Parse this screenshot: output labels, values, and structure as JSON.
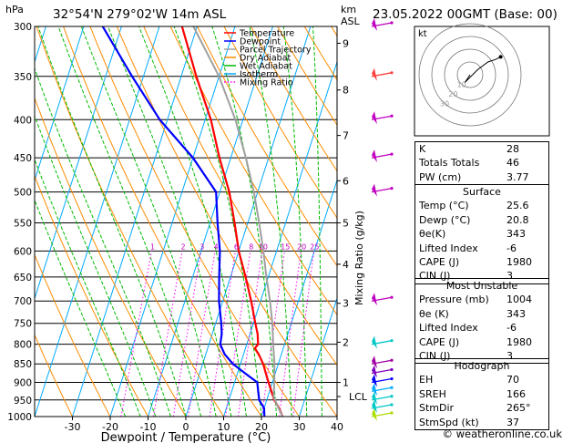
{
  "header": {
    "hpa_label": "hPa",
    "location": "32°54'N  279°02'W  14m  ASL",
    "km_label": "km",
    "asl_label": "ASL",
    "datetime": "23.05.2022  00GMT  (Base: 00)"
  },
  "legend": [
    {
      "label": "Temperature",
      "color": "#ff0000",
      "style": "solid"
    },
    {
      "label": "Dewpoint",
      "color": "#0000ff",
      "style": "solid"
    },
    {
      "label": "Parcel Trajectory",
      "color": "#a0a0a0",
      "style": "solid"
    },
    {
      "label": "Dry Adiabat",
      "color": "#ff8c00",
      "style": "solid"
    },
    {
      "label": "Wet Adiabat",
      "color": "#00bb00",
      "style": "solid"
    },
    {
      "label": "Isotherm",
      "color": "#00aaff",
      "style": "solid"
    },
    {
      "label": "Mixing Ratio",
      "color": "#ff00ff",
      "style": "dotted"
    }
  ],
  "chart_data": {
    "type": "line",
    "xlabel": "Dewpoint / Temperature (°C)",
    "ylabel_right": "Mixing Ratio (g/kg)",
    "xlim": [
      -40,
      40
    ],
    "ylim_hpa": [
      1000,
      300
    ],
    "x_ticks": [
      "-30",
      "-20",
      "-10",
      "0",
      "10",
      "20",
      "30",
      "40"
    ],
    "pressure_levels": [
      300,
      350,
      400,
      450,
      500,
      550,
      600,
      650,
      700,
      750,
      800,
      850,
      900,
      950,
      1000
    ],
    "pressure_labels": [
      "300",
      "350",
      "400",
      "450",
      "500",
      "550",
      "600",
      "650",
      "700",
      "750",
      "800",
      "850",
      "900",
      "950",
      "1000"
    ],
    "km_ticks": [
      {
        "label": "9",
        "p": 316
      },
      {
        "label": "8",
        "p": 365
      },
      {
        "label": "7",
        "p": 420
      },
      {
        "label": "6",
        "p": 483
      },
      {
        "label": "5",
        "p": 550
      },
      {
        "label": "4",
        "p": 625
      },
      {
        "label": "3",
        "p": 705
      },
      {
        "label": "2",
        "p": 795
      },
      {
        "label": "1",
        "p": 900
      }
    ],
    "lcl": {
      "label": "LCL",
      "p": 940
    },
    "mixing_ratio_labels": [
      "1",
      "2",
      "3",
      "4",
      "6",
      "8",
      "10",
      "15",
      "20",
      "25"
    ],
    "mixing_ratio_values": [
      1,
      2,
      3,
      4,
      6,
      8,
      10,
      15,
      20,
      25
    ],
    "mixing_ratio_label_p": 590,
    "series": [
      {
        "name": "Temperature",
        "color": "#ff0000",
        "points": [
          [
            1000,
            25.6
          ],
          [
            975,
            24
          ],
          [
            950,
            22
          ],
          [
            925,
            20.5
          ],
          [
            900,
            19
          ],
          [
            875,
            17.5
          ],
          [
            850,
            16
          ],
          [
            825,
            14
          ],
          [
            810,
            12.5
          ],
          [
            800,
            13
          ],
          [
            775,
            12
          ],
          [
            750,
            10.5
          ],
          [
            700,
            7.5
          ],
          [
            650,
            4
          ],
          [
            600,
            0
          ],
          [
            550,
            -3.5
          ],
          [
            500,
            -7.5
          ],
          [
            450,
            -13
          ],
          [
            400,
            -18.5
          ],
          [
            350,
            -26
          ],
          [
            300,
            -34
          ]
        ]
      },
      {
        "name": "Dewpoint",
        "color": "#0000ff",
        "points": [
          [
            1000,
            20.8
          ],
          [
            975,
            20
          ],
          [
            950,
            18
          ],
          [
            925,
            17
          ],
          [
            900,
            16
          ],
          [
            875,
            12
          ],
          [
            850,
            8
          ],
          [
            825,
            5
          ],
          [
            800,
            3
          ],
          [
            775,
            2.5
          ],
          [
            750,
            1.5
          ],
          [
            700,
            -1
          ],
          [
            650,
            -3
          ],
          [
            600,
            -5
          ],
          [
            550,
            -8
          ],
          [
            500,
            -11
          ],
          [
            450,
            -20
          ],
          [
            400,
            -32
          ],
          [
            350,
            -43
          ],
          [
            300,
            -55
          ]
        ]
      },
      {
        "name": "Parcel Trajectory",
        "color": "#a0a0a0",
        "points": [
          [
            1000,
            25.6
          ],
          [
            970,
            23.5
          ],
          [
            940,
            21.5
          ],
          [
            900,
            20.5
          ],
          [
            850,
            19
          ],
          [
            800,
            17
          ],
          [
            750,
            15
          ],
          [
            700,
            12.5
          ],
          [
            650,
            9.5
          ],
          [
            600,
            6.5
          ],
          [
            550,
            3
          ],
          [
            500,
            -1
          ],
          [
            450,
            -6
          ],
          [
            400,
            -12
          ],
          [
            350,
            -20
          ],
          [
            300,
            -31
          ]
        ]
      }
    ],
    "winds": [
      {
        "p": 1000,
        "color": "#aadd00"
      },
      {
        "p": 975,
        "color": "#00c8c8"
      },
      {
        "p": 950,
        "color": "#00c8c8"
      },
      {
        "p": 925,
        "color": "#00aaff"
      },
      {
        "p": 900,
        "color": "#0000ff"
      },
      {
        "p": 875,
        "color": "#8000c0"
      },
      {
        "p": 850,
        "color": "#a000a0"
      },
      {
        "p": 800,
        "color": "#00c8c8"
      },
      {
        "p": 700,
        "color": "#c000c0"
      },
      {
        "p": 500,
        "color": "#c000c0"
      },
      {
        "p": 450,
        "color": "#c000c0"
      },
      {
        "p": 400,
        "color": "#c000c0"
      },
      {
        "p": 350,
        "color": "#ff4040"
      },
      {
        "p": 300,
        "color": "#c000c0"
      }
    ]
  },
  "hodograph": {
    "unit_label": "kt",
    "ring_labels": [
      "10",
      "20",
      "30"
    ],
    "trace": [
      [
        0,
        0
      ],
      [
        -2,
        -3
      ],
      [
        3,
        2
      ],
      [
        7,
        5
      ],
      [
        10,
        6
      ],
      [
        12,
        7
      ]
    ]
  },
  "indices": [
    {
      "label": "K",
      "value": "28"
    },
    {
      "label": "Totals Totals",
      "value": "46"
    },
    {
      "label": "PW (cm)",
      "value": "3.77"
    }
  ],
  "surface": {
    "title": "Surface",
    "rows": [
      {
        "label": "Temp (°C)",
        "value": "25.6"
      },
      {
        "label": "Dewp (°C)",
        "value": "20.8"
      },
      {
        "label": "θe(K)",
        "value": "343"
      },
      {
        "label": "Lifted Index",
        "value": "-6"
      },
      {
        "label": "CAPE (J)",
        "value": "1980"
      },
      {
        "label": "CIN (J)",
        "value": "3"
      }
    ]
  },
  "most_unstable": {
    "title": "Most Unstable",
    "rows": [
      {
        "label": "Pressure (mb)",
        "value": "1004"
      },
      {
        "label": "θe (K)",
        "value": "343"
      },
      {
        "label": "Lifted Index",
        "value": "-6"
      },
      {
        "label": "CAPE (J)",
        "value": "1980"
      },
      {
        "label": "CIN (J)",
        "value": "3"
      }
    ]
  },
  "hodograph_table": {
    "title": "Hodograph",
    "rows": [
      {
        "label": "EH",
        "value": "70"
      },
      {
        "label": "SREH",
        "value": "166"
      },
      {
        "label": "StmDir",
        "value": "265°"
      },
      {
        "label": "StmSpd (kt)",
        "value": "37"
      }
    ]
  },
  "credit": "© weatheronline.co.uk"
}
